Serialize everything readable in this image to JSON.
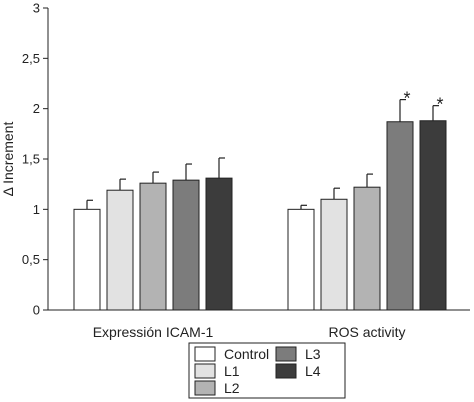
{
  "chart_data": {
    "type": "bar",
    "title": "",
    "xlabel": "",
    "ylabel": "Δ Increment",
    "ylim": [
      0,
      3
    ],
    "yticks": [
      "0",
      "0,5",
      "1",
      "1,5",
      "2",
      "2,5",
      "3"
    ],
    "yticks_values": [
      0,
      0.5,
      1,
      1.5,
      2,
      2.5,
      3
    ],
    "categories": [
      "Expressión ICAM-1",
      "ROS activity"
    ],
    "series": [
      {
        "name": "Control",
        "color": "#ffffff",
        "values": [
          1.0,
          1.0
        ],
        "errors": [
          0.09,
          0.04
        ]
      },
      {
        "name": "L1",
        "color": "#e2e2e2",
        "values": [
          1.19,
          1.1
        ],
        "errors": [
          0.11,
          0.11
        ]
      },
      {
        "name": "L2",
        "color": "#b3b3b3",
        "values": [
          1.26,
          1.22
        ],
        "errors": [
          0.11,
          0.13
        ]
      },
      {
        "name": "L3",
        "color": "#7c7c7c",
        "values": [
          1.29,
          1.87
        ],
        "errors": [
          0.16,
          0.22
        ]
      },
      {
        "name": "L4",
        "color": "#3c3c3c",
        "values": [
          1.31,
          1.88
        ],
        "errors": [
          0.2,
          0.15
        ]
      }
    ],
    "annotations": [
      {
        "text": "*",
        "series": "L3",
        "category": "ROS activity"
      },
      {
        "text": "*",
        "series": "L4",
        "category": "ROS activity"
      }
    ],
    "grid": false,
    "legend_position": "bottom-center"
  }
}
